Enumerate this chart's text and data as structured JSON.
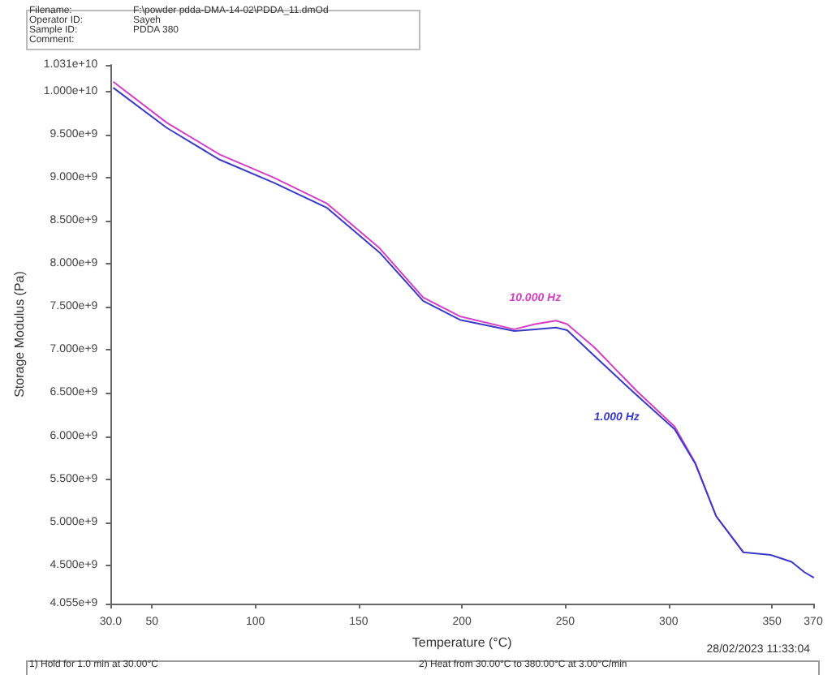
{
  "chart_data": {
    "type": "line",
    "xlabel": "Temperature (°C)",
    "ylabel": "Storage Modulus (Pa)",
    "annotations": [
      "Filename: F:\\powder pdda-DMA-14-02\\PDDA_11.dmOd",
      "Operator ID: Sayeh",
      "Sample ID: PDDA 380",
      "Comment:",
      "28/02/2023 11:33:04",
      "1) Hold for 1.0 min at 30.00°C",
      "2) Heat from 30.00°C to 380.00°C at 3.00°C/min"
    ],
    "xlim": [
      30,
      370
    ],
    "xticks": [
      {
        "value": 30,
        "label": "30.0"
      },
      50,
      100,
      150,
      200,
      250,
      300,
      350,
      370
    ],
    "ylim": [
      4055000000,
      10310000000
    ],
    "yticks": [
      {
        "value": 4055000000,
        "label": "4.055e+9"
      },
      {
        "value": 4500000000,
        "label": "4.500e+9"
      },
      {
        "value": 5000000000,
        "label": "5.000e+9"
      },
      {
        "value": 5500000000,
        "label": "5.500e+9"
      },
      {
        "value": 6000000000,
        "label": "6.000e+9"
      },
      {
        "value": 6500000000,
        "label": "6.500e+9"
      },
      {
        "value": 7000000000,
        "label": "7.000e+9"
      },
      {
        "value": 7500000000,
        "label": "7.500e+9"
      },
      {
        "value": 8000000000,
        "label": "8.000e+9"
      },
      {
        "value": 8500000000,
        "label": "8.500e+9"
      },
      {
        "value": 9000000000,
        "label": "9.000e+9"
      },
      {
        "value": 9500000000,
        "label": "9.500e+9"
      },
      {
        "value": 10000000000,
        "label": "1.000e+10"
      },
      {
        "value": 10310000000,
        "label": "1.031e+10"
      }
    ],
    "grid": false,
    "legend": false,
    "marker": "none",
    "line_style": "solid",
    "series": [
      {
        "name": "10.000 Hz",
        "color": "#d63fc4",
        "x": [
          31.5,
          57.1,
          82.7,
          109.1,
          134.7,
          160.2,
          181.2,
          199,
          225.3,
          235.4,
          245.5,
          250.9,
          264.1,
          284.3,
          302.9,
          312.9,
          323,
          336.2
        ],
        "values": [
          10110000000,
          9640000000,
          9270000000,
          9000000000,
          8700000000,
          8180000000,
          7610000000,
          7390000000,
          7240000000,
          7300000000,
          7340000000,
          7300000000,
          7030000000,
          6530000000,
          6110000000,
          5690000000,
          5070000000,
          4650000000
        ]
      },
      {
        "name": "1.000 Hz",
        "color": "#3a3ac8",
        "x": [
          31.5,
          57.1,
          82.7,
          109.1,
          134.7,
          160.2,
          181.2,
          199,
          225.3,
          235.4,
          245.5,
          250.9,
          264.1,
          284.3,
          302.9,
          312.9,
          323,
          336.2,
          349.4,
          359.5,
          365.7,
          370
        ],
        "values": [
          10040000000,
          9580000000,
          9210000000,
          8940000000,
          8650000000,
          8130000000,
          7570000000,
          7350000000,
          7220000000,
          7240000000,
          7260000000,
          7230000000,
          6930000000,
          6480000000,
          6080000000,
          5680000000,
          5070000000,
          4650000000,
          4620000000,
          4540000000,
          4420000000,
          4360000000
        ]
      }
    ]
  }
}
